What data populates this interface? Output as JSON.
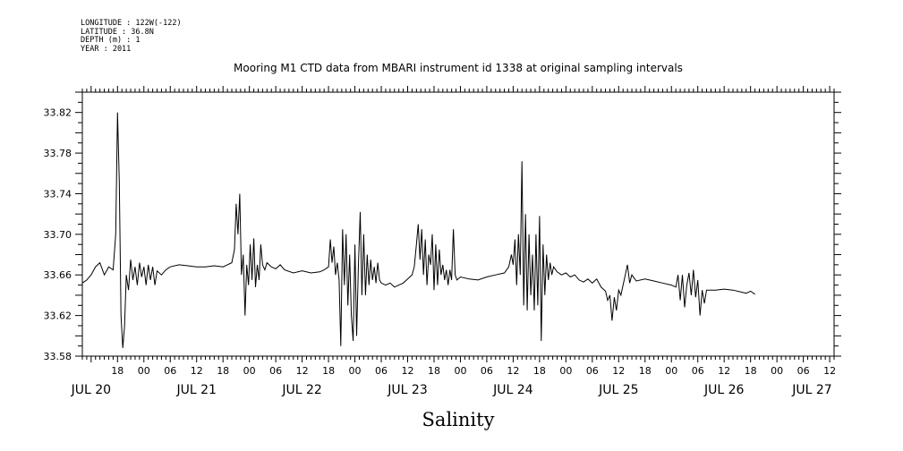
{
  "header": {
    "longitude": "LONGITUDE : 122W(-122)",
    "latitude": "LATITUDE : 36.8N",
    "depth": "DEPTH (m) : 1",
    "year": "YEAR : 2011"
  },
  "chart_data": {
    "type": "line",
    "title": "Mooring M1 CTD data from MBARI instrument id 1338 at original sampling intervals",
    "xlabel": "Salinity",
    "ylabel": "",
    "ylim": [
      33.58,
      33.84
    ],
    "xlim_hours": [
      10,
      181
    ],
    "y_ticks": [
      "33.58",
      "33.62",
      "33.66",
      "33.70",
      "33.74",
      "33.78",
      "33.82"
    ],
    "x_hour_ticks": [
      {
        "label": "18",
        "h": 18
      },
      {
        "label": "00",
        "h": 24
      },
      {
        "label": "06",
        "h": 30
      },
      {
        "label": "12",
        "h": 36
      },
      {
        "label": "18",
        "h": 42
      },
      {
        "label": "00",
        "h": 48
      },
      {
        "label": "06",
        "h": 54
      },
      {
        "label": "12",
        "h": 60
      },
      {
        "label": "18",
        "h": 66
      },
      {
        "label": "00",
        "h": 72
      },
      {
        "label": "06",
        "h": 78
      },
      {
        "label": "12",
        "h": 84
      },
      {
        "label": "18",
        "h": 90
      },
      {
        "label": "00",
        "h": 96
      },
      {
        "label": "06",
        "h": 102
      },
      {
        "label": "12",
        "h": 108
      },
      {
        "label": "18",
        "h": 114
      },
      {
        "label": "00",
        "h": 120
      },
      {
        "label": "06",
        "h": 126
      },
      {
        "label": "12",
        "h": 132
      },
      {
        "label": "18",
        "h": 138
      },
      {
        "label": "00",
        "h": 144
      },
      {
        "label": "06",
        "h": 150
      },
      {
        "label": "12",
        "h": 156
      },
      {
        "label": "18",
        "h": 162
      },
      {
        "label": "00",
        "h": 168
      },
      {
        "label": "06",
        "h": 174
      },
      {
        "label": "12",
        "h": 180
      }
    ],
    "x_day_labels": [
      {
        "label": "JUL 20",
        "h": 12
      },
      {
        "label": "JUL 21",
        "h": 36
      },
      {
        "label": "JUL 22",
        "h": 60
      },
      {
        "label": "JUL 23",
        "h": 84
      },
      {
        "label": "JUL 24",
        "h": 108
      },
      {
        "label": "JUL 25",
        "h": 132
      },
      {
        "label": "JUL 26",
        "h": 156
      },
      {
        "label": "JUL 27",
        "h": 176
      }
    ],
    "series": [
      {
        "points": [
          [
            10,
            33.652
          ],
          [
            11,
            33.655
          ],
          [
            12,
            33.66
          ],
          [
            13,
            33.668
          ],
          [
            14,
            33.672
          ],
          [
            15,
            33.66
          ],
          [
            16,
            33.668
          ],
          [
            17,
            33.665
          ],
          [
            17.6,
            33.7
          ],
          [
            18,
            33.82
          ],
          [
            18.4,
            33.752
          ],
          [
            18.8,
            33.62
          ],
          [
            19.2,
            33.588
          ],
          [
            19.6,
            33.61
          ],
          [
            20,
            33.66
          ],
          [
            20.5,
            33.645
          ],
          [
            21,
            33.675
          ],
          [
            21.5,
            33.655
          ],
          [
            22,
            33.668
          ],
          [
            22.5,
            33.65
          ],
          [
            23,
            33.672
          ],
          [
            23.5,
            33.658
          ],
          [
            24,
            33.668
          ],
          [
            24.5,
            33.65
          ],
          [
            25,
            33.67
          ],
          [
            25.5,
            33.655
          ],
          [
            26,
            33.668
          ],
          [
            26.5,
            33.65
          ],
          [
            27,
            33.664
          ],
          [
            28,
            33.66
          ],
          [
            29,
            33.665
          ],
          [
            30,
            33.668
          ],
          [
            32,
            33.67
          ],
          [
            34,
            33.669
          ],
          [
            36,
            33.668
          ],
          [
            38,
            33.668
          ],
          [
            40,
            33.669
          ],
          [
            42,
            33.668
          ],
          [
            43,
            33.67
          ],
          [
            44,
            33.672
          ],
          [
            44.6,
            33.685
          ],
          [
            45,
            33.73
          ],
          [
            45.4,
            33.7
          ],
          [
            45.8,
            33.74
          ],
          [
            46.2,
            33.66
          ],
          [
            46.6,
            33.68
          ],
          [
            47,
            33.62
          ],
          [
            47.4,
            33.67
          ],
          [
            47.8,
            33.65
          ],
          [
            48.2,
            33.69
          ],
          [
            48.6,
            33.655
          ],
          [
            49,
            33.696
          ],
          [
            49.4,
            33.648
          ],
          [
            49.8,
            33.67
          ],
          [
            50.2,
            33.655
          ],
          [
            50.6,
            33.69
          ],
          [
            51,
            33.67
          ],
          [
            51.5,
            33.665
          ],
          [
            52,
            33.672
          ],
          [
            53,
            33.668
          ],
          [
            54,
            33.666
          ],
          [
            55,
            33.67
          ],
          [
            56,
            33.665
          ],
          [
            58,
            33.662
          ],
          [
            60,
            33.664
          ],
          [
            62,
            33.662
          ],
          [
            64,
            33.663
          ],
          [
            65,
            33.665
          ],
          [
            66,
            33.668
          ],
          [
            66.4,
            33.695
          ],
          [
            66.8,
            33.672
          ],
          [
            67.2,
            33.688
          ],
          [
            67.6,
            33.66
          ],
          [
            68,
            33.672
          ],
          [
            68.4,
            33.655
          ],
          [
            68.8,
            33.59
          ],
          [
            69.2,
            33.705
          ],
          [
            69.6,
            33.65
          ],
          [
            70,
            33.7
          ],
          [
            70.4,
            33.63
          ],
          [
            70.8,
            33.68
          ],
          [
            71.2,
            33.62
          ],
          [
            71.6,
            33.595
          ],
          [
            72,
            33.69
          ],
          [
            72.4,
            33.6
          ],
          [
            72.8,
            33.67
          ],
          [
            73.2,
            33.722
          ],
          [
            73.6,
            33.64
          ],
          [
            74,
            33.7
          ],
          [
            74.4,
            33.64
          ],
          [
            74.8,
            33.68
          ],
          [
            75.2,
            33.65
          ],
          [
            75.6,
            33.675
          ],
          [
            76,
            33.655
          ],
          [
            76.4,
            33.668
          ],
          [
            76.8,
            33.652
          ],
          [
            77.2,
            33.672
          ],
          [
            77.6,
            33.655
          ],
          [
            78,
            33.652
          ],
          [
            79,
            33.65
          ],
          [
            80,
            33.652
          ],
          [
            81,
            33.648
          ],
          [
            82,
            33.65
          ],
          [
            83,
            33.652
          ],
          [
            84,
            33.656
          ],
          [
            85,
            33.66
          ],
          [
            85.5,
            33.668
          ],
          [
            86,
            33.69
          ],
          [
            86.4,
            33.71
          ],
          [
            86.8,
            33.675
          ],
          [
            87.2,
            33.705
          ],
          [
            87.6,
            33.66
          ],
          [
            88,
            33.695
          ],
          [
            88.4,
            33.65
          ],
          [
            88.8,
            33.68
          ],
          [
            89.2,
            33.67
          ],
          [
            89.6,
            33.7
          ],
          [
            90,
            33.645
          ],
          [
            90.4,
            33.69
          ],
          [
            90.8,
            33.65
          ],
          [
            91.2,
            33.685
          ],
          [
            91.6,
            33.66
          ],
          [
            92,
            33.67
          ],
          [
            92.4,
            33.655
          ],
          [
            92.8,
            33.665
          ],
          [
            93.2,
            33.65
          ],
          [
            93.6,
            33.665
          ],
          [
            94,
            33.655
          ],
          [
            94.4,
            33.705
          ],
          [
            94.8,
            33.66
          ],
          [
            95.2,
            33.655
          ],
          [
            96,
            33.658
          ],
          [
            98,
            33.656
          ],
          [
            100,
            33.655
          ],
          [
            102,
            33.658
          ],
          [
            104,
            33.66
          ],
          [
            106,
            33.662
          ],
          [
            107,
            33.668
          ],
          [
            107.6,
            33.68
          ],
          [
            108,
            33.67
          ],
          [
            108.4,
            33.695
          ],
          [
            108.8,
            33.65
          ],
          [
            109.2,
            33.7
          ],
          [
            109.6,
            33.66
          ],
          [
            110,
            33.772
          ],
          [
            110.4,
            33.63
          ],
          [
            110.8,
            33.72
          ],
          [
            111.2,
            33.625
          ],
          [
            111.6,
            33.7
          ],
          [
            112,
            33.64
          ],
          [
            112.4,
            33.68
          ],
          [
            112.8,
            33.625
          ],
          [
            113.2,
            33.7
          ],
          [
            113.6,
            33.63
          ],
          [
            114,
            33.718
          ],
          [
            114.4,
            33.595
          ],
          [
            114.8,
            33.69
          ],
          [
            115.2,
            33.64
          ],
          [
            115.6,
            33.68
          ],
          [
            116,
            33.655
          ],
          [
            116.4,
            33.672
          ],
          [
            116.8,
            33.66
          ],
          [
            117.2,
            33.668
          ],
          [
            118,
            33.663
          ],
          [
            119,
            33.66
          ],
          [
            120,
            33.662
          ],
          [
            121,
            33.658
          ],
          [
            122,
            33.66
          ],
          [
            123,
            33.655
          ],
          [
            124,
            33.653
          ],
          [
            125,
            33.656
          ],
          [
            126,
            33.652
          ],
          [
            127,
            33.656
          ],
          [
            128,
            33.648
          ],
          [
            129,
            33.644
          ],
          [
            129.5,
            33.635
          ],
          [
            130,
            33.64
          ],
          [
            130.5,
            33.615
          ],
          [
            131,
            33.638
          ],
          [
            131.5,
            33.625
          ],
          [
            132,
            33.645
          ],
          [
            132.5,
            33.64
          ],
          [
            133,
            33.65
          ],
          [
            133.5,
            33.66
          ],
          [
            134,
            33.67
          ],
          [
            134.5,
            33.652
          ],
          [
            135,
            33.66
          ],
          [
            136,
            33.654
          ],
          [
            138,
            33.656
          ],
          [
            140,
            33.654
          ],
          [
            142,
            33.652
          ],
          [
            144,
            33.65
          ],
          [
            145,
            33.648
          ],
          [
            145.5,
            33.66
          ],
          [
            146,
            33.635
          ],
          [
            146.5,
            33.66
          ],
          [
            147,
            33.628
          ],
          [
            147.5,
            33.65
          ],
          [
            148,
            33.662
          ],
          [
            148.5,
            33.64
          ],
          [
            149,
            33.665
          ],
          [
            149.5,
            33.638
          ],
          [
            150,
            33.655
          ],
          [
            150.5,
            33.62
          ],
          [
            151,
            33.645
          ],
          [
            151.5,
            33.632
          ],
          [
            152,
            33.645
          ],
          [
            154,
            33.645
          ],
          [
            156,
            33.646
          ],
          [
            158,
            33.645
          ],
          [
            160,
            33.643
          ],
          [
            161,
            33.642
          ],
          [
            162,
            33.644
          ],
          [
            163,
            33.641
          ]
        ]
      }
    ]
  }
}
